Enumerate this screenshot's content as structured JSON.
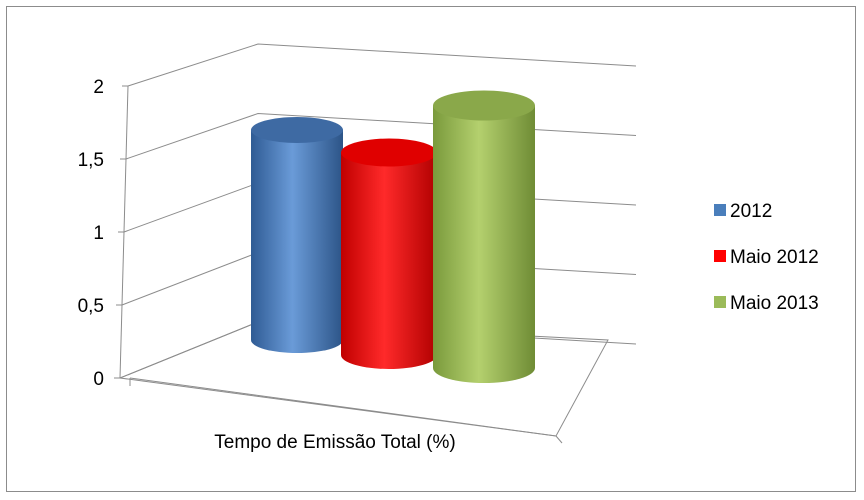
{
  "chart_data": {
    "type": "bar",
    "style": "3d-cylinder",
    "categories": [
      "Tempo de Emissão Total (%)"
    ],
    "xlabel": "Tempo de Emissão Total (%)",
    "ylabel": "",
    "ylim": [
      0,
      2
    ],
    "yticks": [
      "0",
      "0,5",
      "1",
      "1,5",
      "2"
    ],
    "legend": "right",
    "grid": true,
    "series": [
      {
        "name": "2012",
        "values": [
          1.4
        ],
        "color": "#4a7ebb"
      },
      {
        "name": "Maio 2012",
        "values": [
          1.35
        ],
        "color": "#ff0000"
      },
      {
        "name": "Maio 2013",
        "values": [
          1.75
        ],
        "color": "#9bbb59"
      }
    ]
  }
}
